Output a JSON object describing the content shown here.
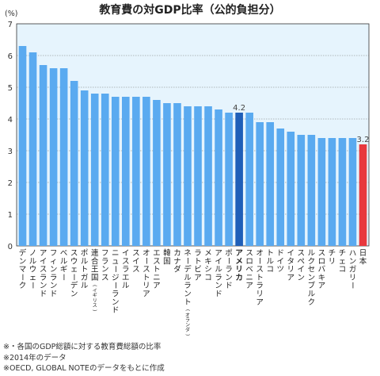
{
  "chart_data": {
    "type": "bar",
    "title": "教育費の対GDP比率（公的負担分）",
    "ylabel": "(%)",
    "xlabel": "",
    "ylim": [
      0,
      7
    ],
    "yticks": [
      0,
      1,
      2,
      3,
      4,
      5,
      6,
      7
    ],
    "grid": true,
    "categories": [
      {
        "label": "デンマーク"
      },
      {
        "label": "ノルウェー"
      },
      {
        "label": "アイスランド"
      },
      {
        "label": "フィンランド"
      },
      {
        "label": "ベルギー"
      },
      {
        "label": "スウェーデン"
      },
      {
        "label": "ポルトガル"
      },
      {
        "label": "連合王国",
        "sub": "(イギリス)"
      },
      {
        "label": "フランス"
      },
      {
        "label": "ニュージーランド"
      },
      {
        "label": "イスラエル"
      },
      {
        "label": "スイス"
      },
      {
        "label": "オーストリア"
      },
      {
        "label": "エストニア"
      },
      {
        "label": "韓国"
      },
      {
        "label": "カナダ"
      },
      {
        "label": "ネーデルラント",
        "sub": "(オランダ)"
      },
      {
        "label": "ラトビア"
      },
      {
        "label": "メキシコ"
      },
      {
        "label": "アイルランド"
      },
      {
        "label": "ポーランド"
      },
      {
        "label": "アメリカ"
      },
      {
        "label": "スロベニア"
      },
      {
        "label": "オーストラリア"
      },
      {
        "label": "トルコ"
      },
      {
        "label": "ドイツ"
      },
      {
        "label": "イタリア"
      },
      {
        "label": "スペイン"
      },
      {
        "label": "ルクセンブルク"
      },
      {
        "label": "スロバキア"
      },
      {
        "label": "チリ"
      },
      {
        "label": "チェコ"
      },
      {
        "label": "ハンガリー"
      },
      {
        "label": "日本"
      }
    ],
    "values": [
      6.3,
      6.1,
      5.7,
      5.6,
      5.6,
      5.2,
      4.9,
      4.8,
      4.8,
      4.7,
      4.7,
      4.7,
      4.7,
      4.6,
      4.5,
      4.5,
      4.4,
      4.4,
      4.4,
      4.3,
      4.2,
      4.2,
      4.2,
      3.9,
      3.9,
      3.7,
      3.6,
      3.5,
      3.5,
      3.4,
      3.4,
      3.4,
      3.4,
      3.2
    ],
    "highlights": [
      {
        "category": "アメリカ",
        "value_label": "4.2",
        "color": "#1f5fb8"
      },
      {
        "category": "日本",
        "value_label": "3.2",
        "color": "#e8383d"
      }
    ],
    "bar_color": "#5aaaf0",
    "bar_color_dark": "#2f86d8",
    "plot_background": "#e6f4fd",
    "label_bold": [
      "アメリカ"
    ]
  },
  "notes": [
    "※・各国のGDP総額に対する教育費総額の比率",
    "※2014年のデータ",
    "※OECD, GLOBAL NOTEのデータをもとに作成"
  ]
}
